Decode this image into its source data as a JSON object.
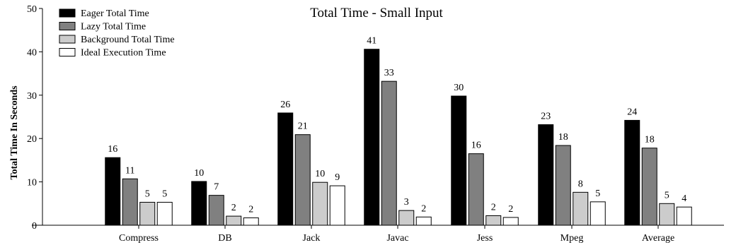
{
  "chart_data": {
    "type": "bar",
    "title": "Total Time - Small Input",
    "xlabel": "",
    "ylabel": "Total Time In Seconds",
    "ylim": [
      0,
      50
    ],
    "yticks": [
      0,
      10,
      20,
      30,
      40,
      50
    ],
    "grid": false,
    "legend_position": "top-left",
    "categories": [
      "Compress",
      "DB",
      "Jack",
      "Javac",
      "Jess",
      "Mpeg",
      "Average"
    ],
    "series": [
      {
        "name": "Eager Total Time",
        "color": "#000000",
        "values": [
          15.6,
          10.1,
          25.9,
          40.6,
          29.8,
          23.2,
          24.2
        ],
        "labels": [
          "16",
          "10",
          "26",
          "41",
          "30",
          "23",
          "24"
        ]
      },
      {
        "name": "Lazy Total Time",
        "color": "#808080",
        "values": [
          10.7,
          6.9,
          20.9,
          33.2,
          16.5,
          18.4,
          17.8
        ],
        "labels": [
          "11",
          "7",
          "21",
          "33",
          "16",
          "18",
          "18"
        ]
      },
      {
        "name": "Background Total Time",
        "color": "#cccccc",
        "values": [
          5.3,
          2.1,
          9.9,
          3.4,
          2.2,
          7.6,
          5.0
        ],
        "labels": [
          "5",
          "2",
          "10",
          "3",
          "2",
          "8",
          "5"
        ]
      },
      {
        "name": "Ideal Execution Time",
        "color": "#ffffff",
        "values": [
          5.3,
          1.7,
          9.1,
          1.9,
          1.8,
          5.4,
          4.2
        ],
        "labels": [
          "5",
          "2",
          "9",
          "2",
          "2",
          "5",
          "4"
        ]
      }
    ]
  }
}
